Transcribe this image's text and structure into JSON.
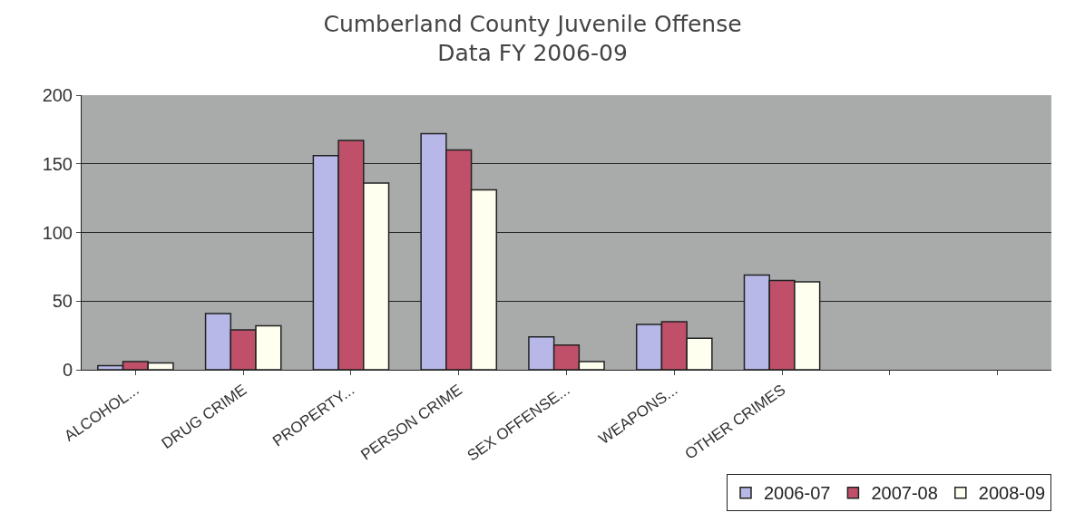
{
  "chart_data": {
    "type": "bar",
    "title": "Cumberland County Juvenile Offense\nData FY 2006-09",
    "categories": [
      "ALCOHOL...",
      "DRUG CRIME",
      "PROPERTY...",
      "PERSON CRIME",
      "SEX OFFENSE...",
      "WEAPONS...",
      "OTHER CRIMES",
      null,
      null
    ],
    "series": [
      {
        "name": "2006-07",
        "color": "#b8b8e8",
        "values": [
          3,
          41,
          156,
          172,
          24,
          33,
          69,
          null,
          null
        ]
      },
      {
        "name": "2007-08",
        "color": "#c0506a",
        "values": [
          6,
          29,
          167,
          160,
          18,
          35,
          65,
          null,
          null
        ]
      },
      {
        "name": "2008-09",
        "color": "#fffff0",
        "values": [
          5,
          32,
          136,
          131,
          6,
          23,
          64,
          null,
          null
        ]
      }
    ],
    "ylim": [
      0,
      200
    ],
    "yticks": [
      0,
      50,
      100,
      150,
      200
    ],
    "grid": "y",
    "legend": "bottom right"
  }
}
